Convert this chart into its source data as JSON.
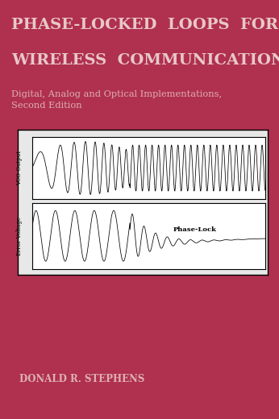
{
  "bg_color": "#b03050",
  "title_line1": "PHASE-LOCKED  LOOPS  FOR",
  "title_line2": "WIRELESS  COMMUNICATIONS",
  "subtitle": "Digital, Analog and Optical Implementations,\nSecond Edition",
  "author": "DONALD R. STEPHENS",
  "title_color": "#e8c8c8",
  "subtitle_color": "#ddb0b0",
  "author_color": "#ddb0b0",
  "plot_bg": "#ffffff",
  "plot_border": "#000000",
  "vco_label": "VCO Output",
  "error_label": "Error Voltage",
  "phase_lock_label": "Phase-Lock",
  "top_stripe_color": "#c06070",
  "lock_point": 0.42,
  "n_points": 2000
}
